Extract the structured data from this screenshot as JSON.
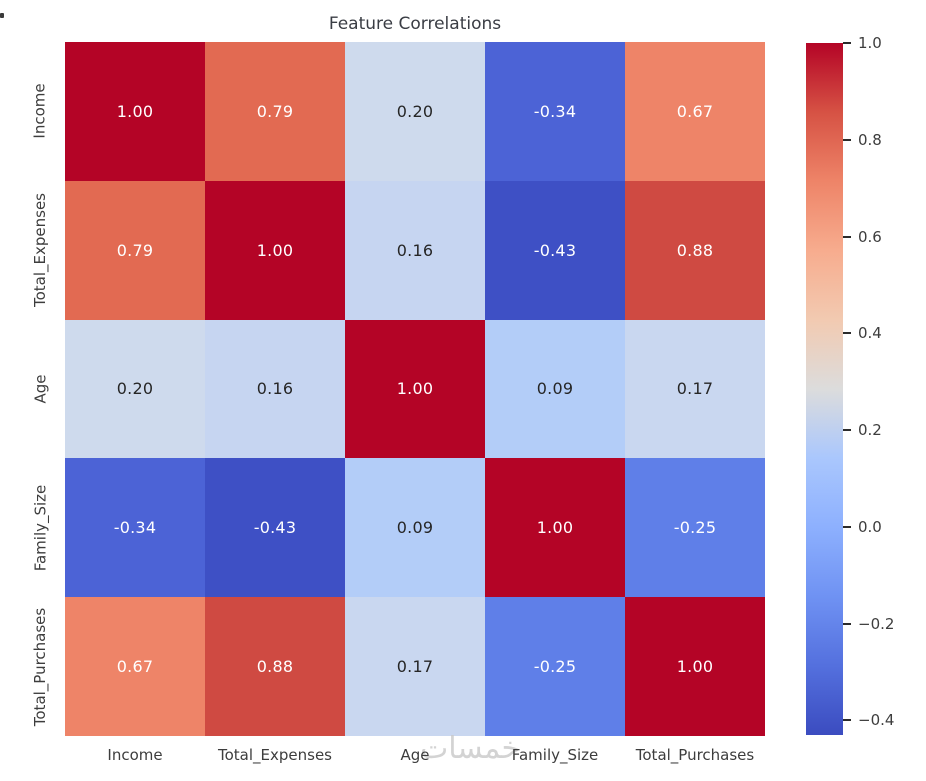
{
  "title": "Feature Correlations",
  "watermark": "خمسات",
  "colors": {
    "background": "#ffffff",
    "title_text": "#3a3d44",
    "tick_text": "#3d3d3d",
    "watermark": "#c9c9c9"
  },
  "chart_data": {
    "type": "heatmap",
    "title": "Feature Correlations",
    "categories": [
      "Income",
      "Total_Expenses",
      "Age",
      "Family_Size",
      "Total_Purchases"
    ],
    "x_tick_labels": [
      "Income",
      "Total_Expenses",
      "Age",
      "Family_Size",
      "Total_Purchases"
    ],
    "y_tick_labels": [
      "Income",
      "Total_Expenses",
      "Age",
      "Family_Size",
      "Total_Purchases"
    ],
    "matrix": [
      [
        1.0,
        0.79,
        0.2,
        -0.34,
        0.67
      ],
      [
        0.79,
        1.0,
        0.16,
        -0.43,
        0.88
      ],
      [
        0.2,
        0.16,
        1.0,
        0.09,
        0.17
      ],
      [
        -0.34,
        -0.43,
        0.09,
        1.0,
        -0.25
      ],
      [
        0.67,
        0.88,
        0.17,
        -0.25,
        1.0
      ]
    ],
    "cell_labels": [
      [
        "1.00",
        "0.79",
        "0.20",
        "-0.34",
        "0.67"
      ],
      [
        "0.79",
        "1.00",
        "0.16",
        "-0.43",
        "0.88"
      ],
      [
        "0.20",
        "0.16",
        "1.00",
        "0.09",
        "0.17"
      ],
      [
        "-0.34",
        "-0.43",
        "0.09",
        "1.00",
        "-0.25"
      ],
      [
        "0.67",
        "0.88",
        "0.17",
        "-0.25",
        "1.00"
      ]
    ],
    "cell_colors": [
      [
        "#b40426",
        "#e26a52",
        "#cedaed",
        "#4c63d6",
        "#ee8468"
      ],
      [
        "#e26a52",
        "#b40426",
        "#c6d5f1",
        "#3e50c5",
        "#cf4a42"
      ],
      [
        "#cedaed",
        "#c6d5f1",
        "#b40426",
        "#b3cdf8",
        "#c9d7f0"
      ],
      [
        "#4c63d6",
        "#3e50c5",
        "#b3cdf8",
        "#b40426",
        "#5f7fe8"
      ],
      [
        "#ee8468",
        "#cf4a42",
        "#c9d7f0",
        "#5f7fe8",
        "#b40426"
      ]
    ],
    "cell_text_colors": [
      [
        "#ffffff",
        "#ffffff",
        "#262626",
        "#ffffff",
        "#ffffff"
      ],
      [
        "#ffffff",
        "#ffffff",
        "#262626",
        "#ffffff",
        "#ffffff"
      ],
      [
        "#262626",
        "#262626",
        "#ffffff",
        "#262626",
        "#262626"
      ],
      [
        "#ffffff",
        "#ffffff",
        "#262626",
        "#ffffff",
        "#ffffff"
      ],
      [
        "#ffffff",
        "#ffffff",
        "#262626",
        "#ffffff",
        "#ffffff"
      ]
    ],
    "colormap": "coolwarm",
    "vmin": -0.43,
    "vmax": 1.0,
    "grid": false,
    "legend_position": "colorbar-right",
    "colorbar": {
      "ticks": [
        {
          "value": 1.0,
          "label": "1.0"
        },
        {
          "value": 0.8,
          "label": "0.8"
        },
        {
          "value": 0.6,
          "label": "0.6"
        },
        {
          "value": 0.4,
          "label": "0.4"
        },
        {
          "value": 0.2,
          "label": "0.2"
        },
        {
          "value": 0.0,
          "label": "0.0"
        },
        {
          "value": -0.2,
          "label": "−0.2"
        },
        {
          "value": -0.4,
          "label": "−0.4"
        }
      ],
      "gradient_stops": [
        "#3b4cc0",
        "#5470de",
        "#6f92f3",
        "#8db0fe",
        "#aac7fd",
        "#dcdcdc",
        "#f2cab1",
        "#f7ac8e",
        "#ee8468",
        "#d65244",
        "#b40426"
      ]
    }
  }
}
